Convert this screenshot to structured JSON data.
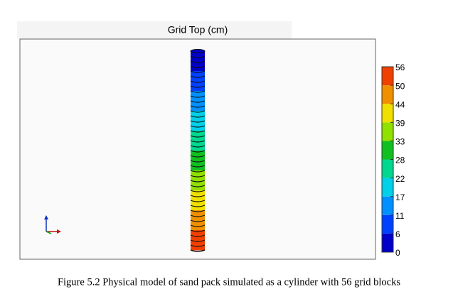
{
  "figure": {
    "title": "Grid Top (cm)",
    "colorbar": {
      "ticks": [
        0,
        6,
        11,
        17,
        22,
        28,
        33,
        39,
        44,
        50,
        56
      ],
      "colors": [
        "#0000c8",
        "#0040ff",
        "#0090ff",
        "#00d0e8",
        "#00d890",
        "#10c020",
        "#90e000",
        "#f0e000",
        "#f09000",
        "#f04000"
      ]
    }
  },
  "caption": "Figure 5.2 Physical model of sand pack simulated as a cylinder with 56 grid blocks"
}
